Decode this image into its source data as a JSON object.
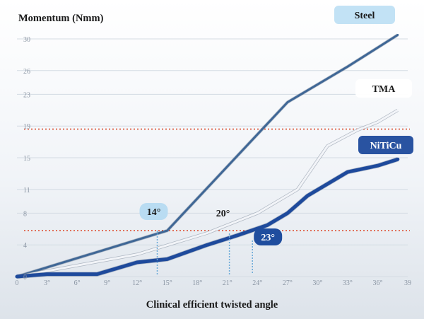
{
  "chart_data": {
    "type": "line",
    "ylabel": "Momentum (Nmm)",
    "xlabel": "Clinical efficient twisted angle",
    "x_ticks": [
      "0",
      "3°",
      "6°",
      "9°",
      "12°",
      "15°",
      "18°",
      "21°",
      "24°",
      "27°",
      "30°",
      "33°",
      "36°",
      "39"
    ],
    "y_ticks": [
      "0",
      "4",
      "8",
      "11",
      "15",
      "19",
      "23",
      "26",
      "30"
    ],
    "xlim": [
      0,
      39
    ],
    "ylim": [
      0,
      30
    ],
    "series": [
      {
        "name": "Steel",
        "color": "#3f6796",
        "x": [
          0,
          15,
          27,
          33,
          38
        ],
        "y": [
          0,
          5.8,
          22,
          26.5,
          30.5
        ]
      },
      {
        "name": "TMA",
        "color": "#f2f4f8",
        "x": [
          0,
          12,
          19,
          24,
          28,
          31,
          34,
          36,
          38
        ],
        "y": [
          0,
          2.8,
          5.5,
          8,
          11,
          16.5,
          18.5,
          19.5,
          21
        ]
      },
      {
        "name": "NiTiCu",
        "color": "#1e4a9c",
        "x": [
          0,
          3,
          8,
          12,
          15,
          19,
          22,
          25,
          27,
          29,
          33,
          36,
          38
        ],
        "y": [
          0,
          0.3,
          0.3,
          1.8,
          2.2,
          4,
          5.2,
          6.5,
          8,
          10.2,
          13.2,
          14,
          14.8
        ]
      }
    ],
    "reference_lines": [
      {
        "axis": "y",
        "value": 18.6,
        "color": "#e0705a"
      },
      {
        "axis": "y",
        "value": 5.8,
        "color": "#e0705a"
      }
    ],
    "annotations": [
      {
        "text": "14°",
        "x": 14,
        "badge": "#b9dcf2",
        "text_color": "#1a1a1a"
      },
      {
        "text": "20°",
        "x": 21.2,
        "badge": "none",
        "text_color": "#1a1a1a"
      },
      {
        "text": "23°",
        "x": 23.5,
        "badge": "#1f4d9e",
        "text_color": "#ffffff"
      }
    ],
    "grid": true,
    "legend": "inline labels at line ends"
  }
}
